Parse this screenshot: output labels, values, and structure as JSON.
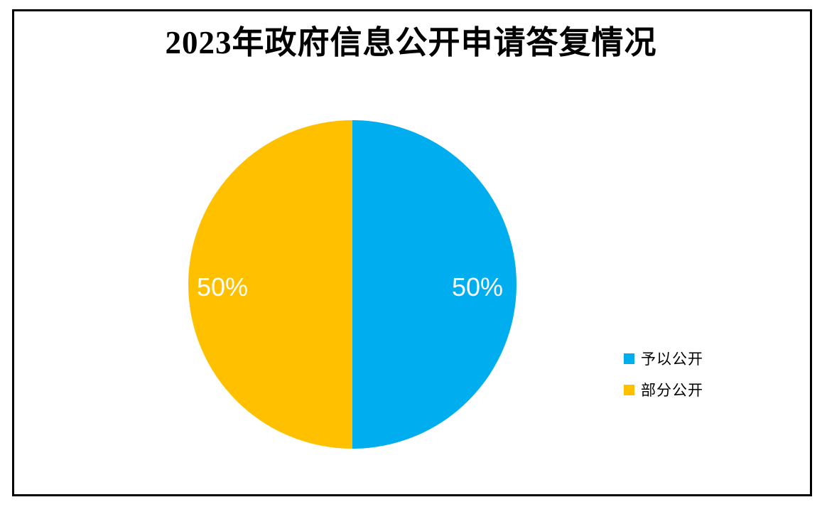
{
  "page": {
    "background_color": "#FFFFFF",
    "frame_border_color": "#000000"
  },
  "chart_data": {
    "type": "pie",
    "title": "2023年政府信息公开申请答复情况",
    "slices": [
      {
        "label": "予以公开",
        "value": 50,
        "display": "50%",
        "color": "#00ADEF"
      },
      {
        "label": "部分公开",
        "value": 50,
        "display": "50%",
        "color": "#FFC000"
      }
    ],
    "total": 100,
    "data_label_color": "#FFFFFF",
    "legend_position": "right",
    "start_angle_deg": 0,
    "direction": "clockwise"
  }
}
